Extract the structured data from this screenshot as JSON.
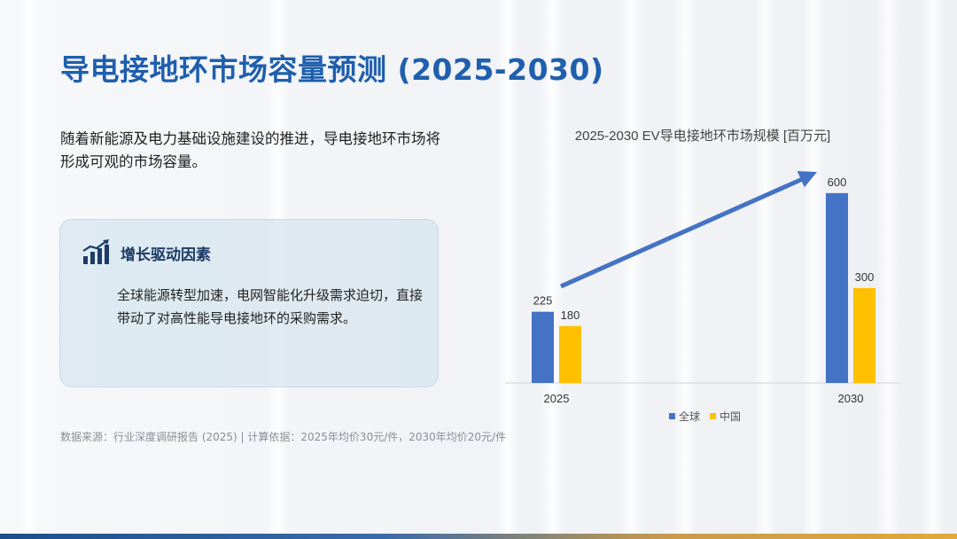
{
  "slide": {
    "title": "导电接地环市场容量预测 (2025-2030)",
    "intro": "随着新能源及电力基础设施建设的推进，导电接地环市场将形成可观的市场容量。",
    "card": {
      "title": "增长驱动因素",
      "body": "全球能源转型加速，电网智能化升级需求迫切，直接带动了对高性能导电接地环的采购需求。",
      "icon": "growth-chart-icon"
    },
    "source": "数据来源：行业深度调研报告 (2025) | 计算依据：2025年均价30元/件，2030年均价20元/件"
  },
  "colors": {
    "title": "#1f5fad",
    "global": "#4472c4",
    "china": "#ffc000",
    "arrow": "#4472c4"
  },
  "chart_data": {
    "type": "bar",
    "title": "2025-2030 EV导电接地环市场规模 [百万元]",
    "categories": [
      "2025",
      "2030"
    ],
    "series": [
      {
        "name": "全球",
        "values": [
          225,
          600
        ],
        "labels": [
          "225",
          "600"
        ]
      },
      {
        "name": "中国",
        "values": [
          180,
          300
        ],
        "labels": [
          "180",
          "300"
        ]
      }
    ],
    "ylim": [
      0,
      650
    ],
    "legend": "bottom",
    "grid": false,
    "annotation": "growth-arrow"
  }
}
